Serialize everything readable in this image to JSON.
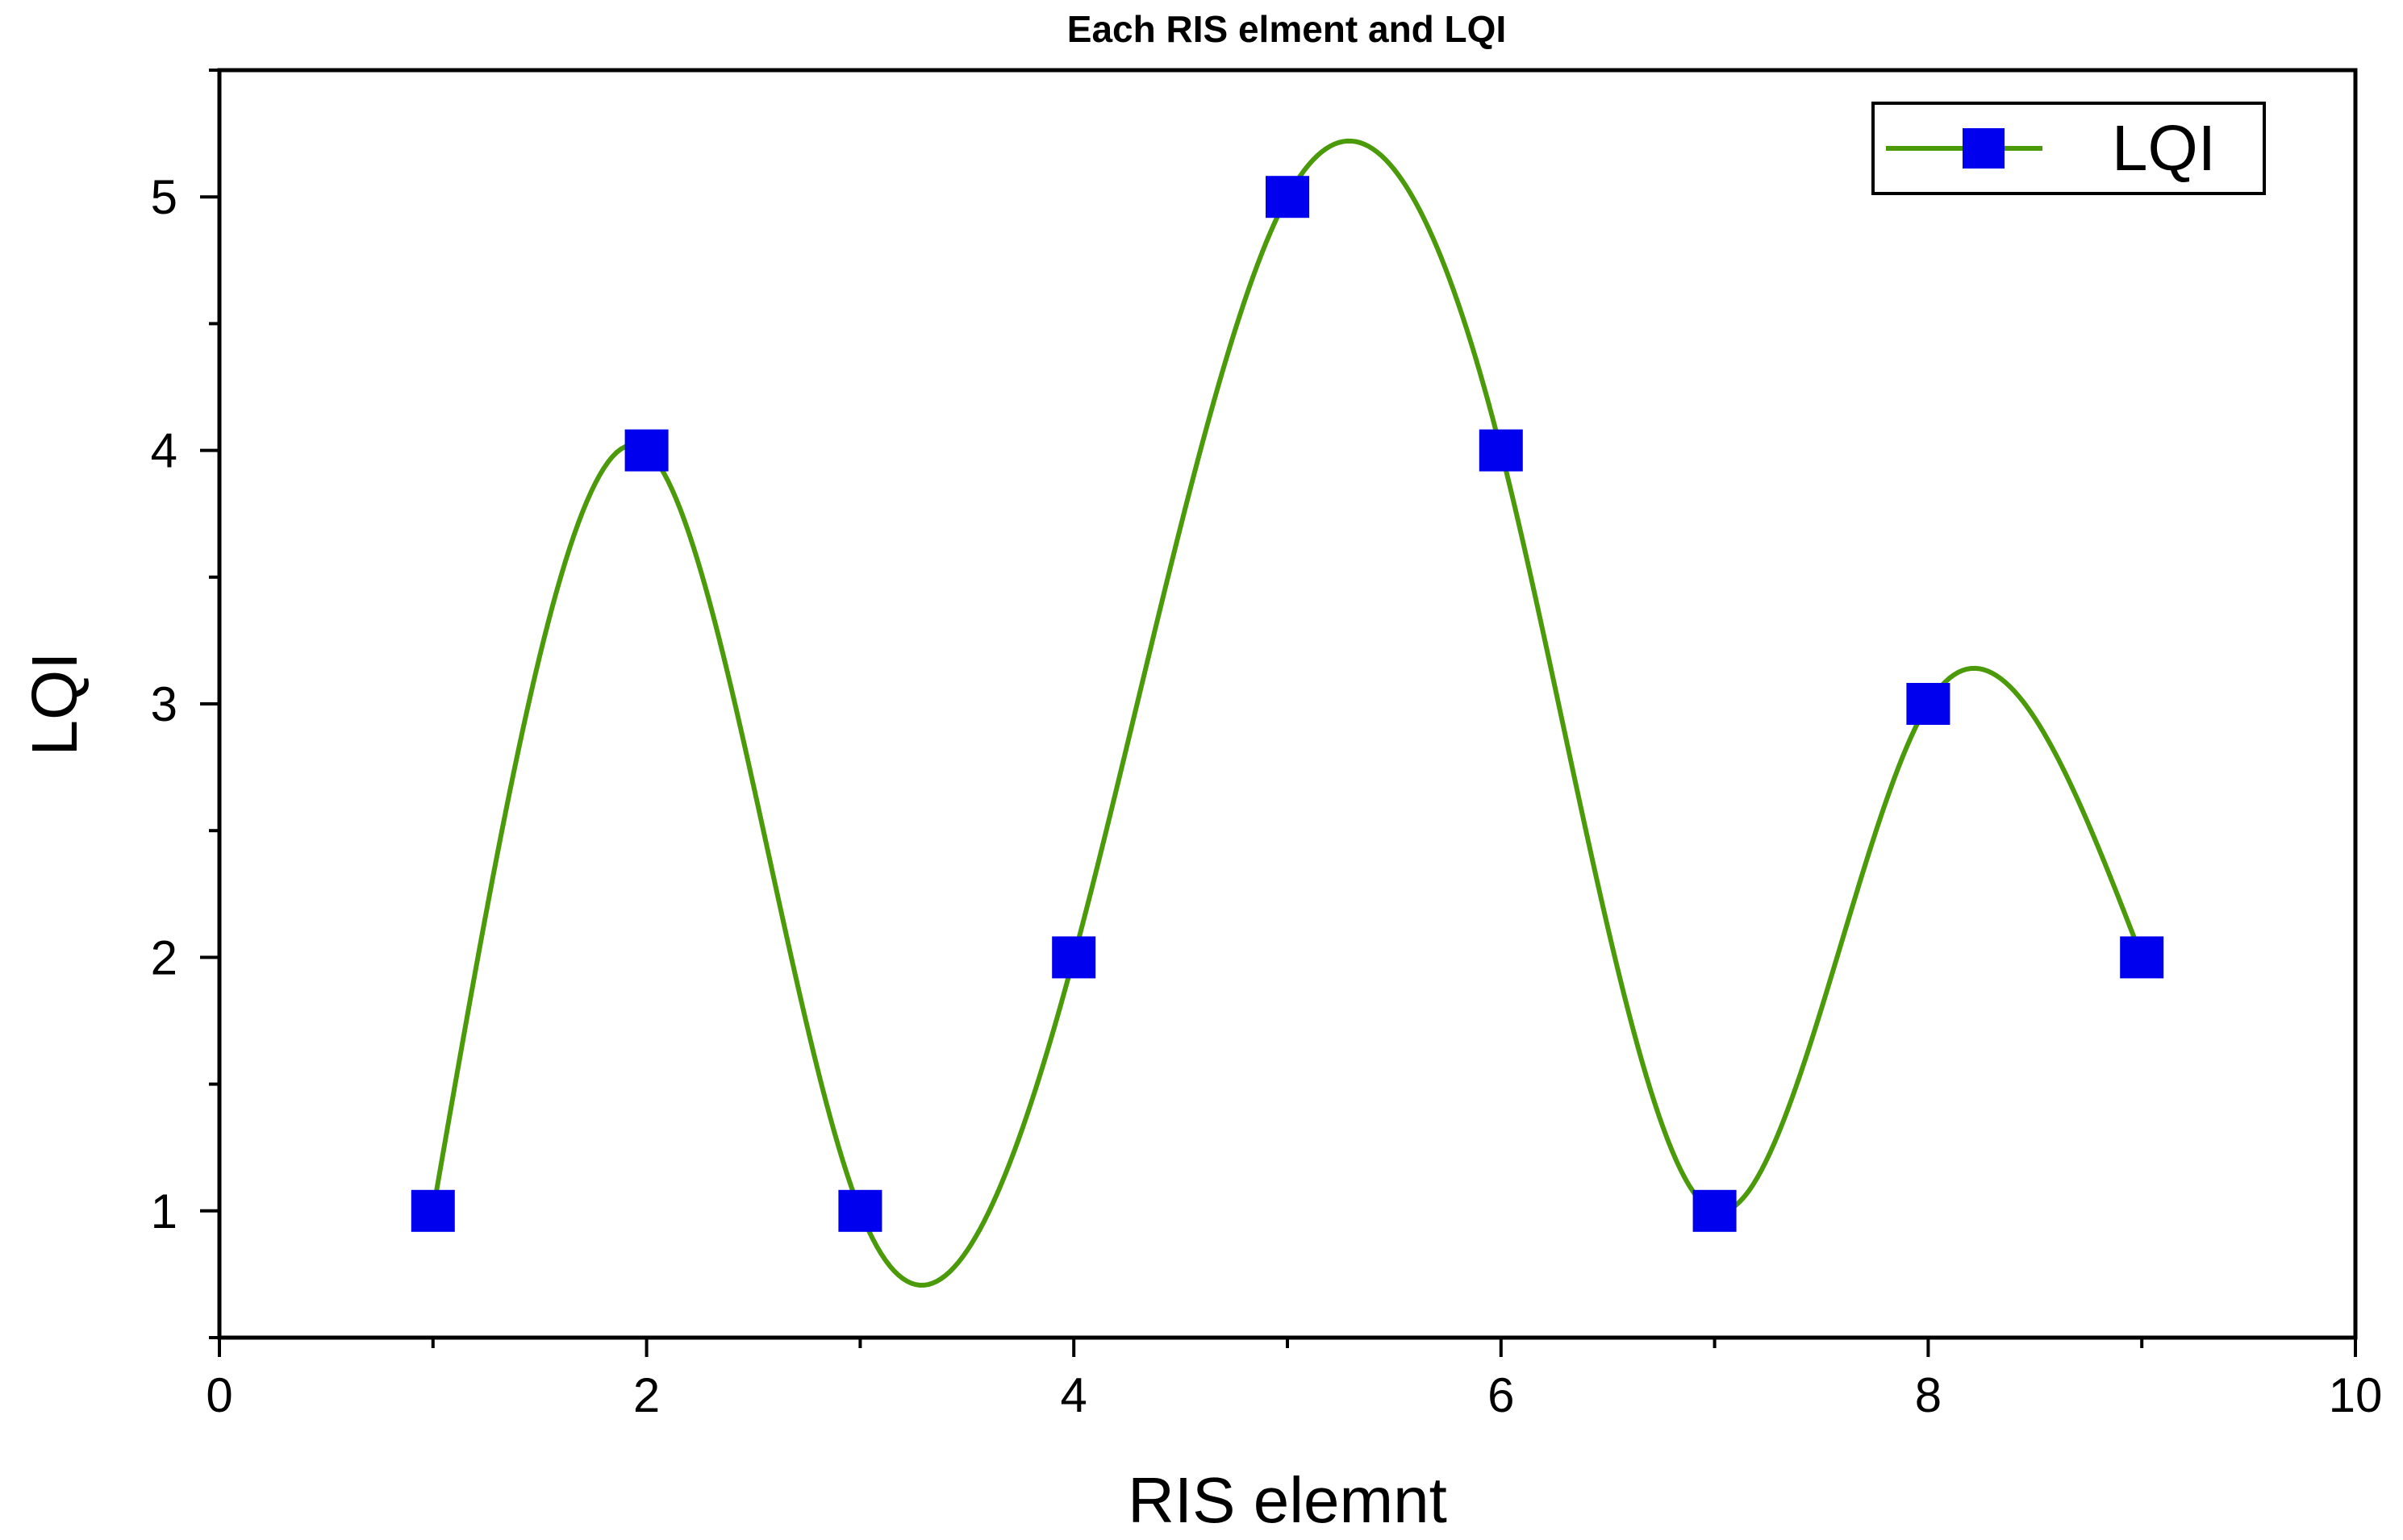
{
  "chart_data": {
    "type": "line",
    "title": "Each RIS elment and LQI",
    "xlabel": "RIS elemnt",
    "ylabel": "LQI",
    "xlim": [
      0,
      10
    ],
    "ylim": [
      0.5,
      5.5
    ],
    "x_ticks": [
      "0",
      "2",
      "4",
      "6",
      "8",
      "10"
    ],
    "y_ticks": [
      "1",
      "2",
      "3",
      "4",
      "5"
    ],
    "grid": false,
    "legend_position": "top-right",
    "series": [
      {
        "name": "LQI",
        "line_color": "#4a9a0a",
        "marker_color": "#0000ee",
        "marker": "square",
        "smooth": true,
        "x": [
          1,
          2,
          3,
          4,
          5,
          6,
          7,
          8,
          9
        ],
        "y": [
          1,
          4,
          1,
          2,
          5,
          4,
          1,
          3,
          2
        ]
      }
    ]
  }
}
